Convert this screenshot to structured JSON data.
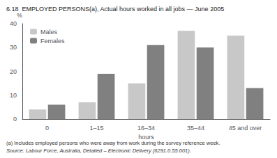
{
  "chart_data": {
    "type": "bar",
    "title": "6.18  EMPLOYED PERSONS(a), Actual hours worked in all jobs — June 2005",
    "categories": [
      "0",
      "1–15",
      "16–34",
      "35–44",
      "45 and over"
    ],
    "xlabel": "hours",
    "ylabel": "%",
    "series": [
      {
        "name": "Males",
        "color": "#c8c8c8",
        "values": [
          4,
          7,
          15,
          37,
          35
        ]
      },
      {
        "name": "Females",
        "color": "#808080",
        "values": [
          6,
          19,
          31,
          30,
          13
        ]
      }
    ],
    "ylim": [
      0,
      40
    ],
    "yticks": [
      0,
      10,
      20,
      30,
      40
    ],
    "grid": false,
    "legend": "upper left",
    "annotations": [
      "(a) Includes employed persons who were away from work during the survey reference week.",
      "Source: Labour Force, Australia, Detailed – Electronic Delivery (6291.0.55.001)."
    ]
  }
}
